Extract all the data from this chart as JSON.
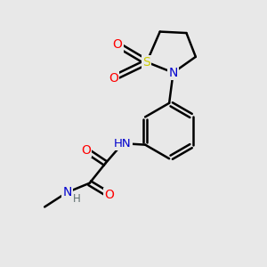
{
  "background_color": "#e8e8e8",
  "bond_color": "#000000",
  "atom_colors": {
    "O": "#ff0000",
    "N": "#0000cd",
    "S": "#cccc00",
    "H": "#607070",
    "C": "#000000"
  },
  "bond_width": 1.8,
  "figsize": [
    3.0,
    3.0
  ],
  "dpi": 100
}
